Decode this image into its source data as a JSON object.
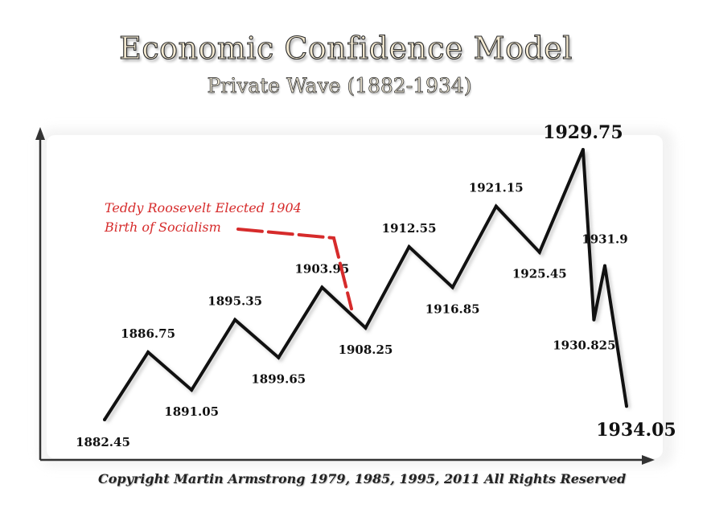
{
  "header": {
    "title": "Economic Confidence Model",
    "subtitle": "Private Wave (1882-1934)"
  },
  "annotation": {
    "lines": [
      "Teddy Roosevelt Elected 1904",
      "Birth of Socialism"
    ],
    "color": "#d62b2b"
  },
  "footer": {
    "copyright": "Copyright Martin Armstrong 1979, 1985, 1995, 2011 All Rights Reserved"
  },
  "chart_data": {
    "type": "line",
    "grid": false,
    "points": [
      {
        "x": 1882.45,
        "label": "1882.45",
        "level": 0.0
      },
      {
        "x": 1886.75,
        "label": "1886.75",
        "level": 0.25
      },
      {
        "x": 1891.05,
        "label": "1891.05",
        "level": 0.11
      },
      {
        "x": 1895.35,
        "label": "1895.35",
        "level": 0.37
      },
      {
        "x": 1899.65,
        "label": "1899.65",
        "level": 0.23
      },
      {
        "x": 1903.95,
        "label": "1903.95",
        "level": 0.49
      },
      {
        "x": 1908.25,
        "label": "1908.25",
        "level": 0.34
      },
      {
        "x": 1912.55,
        "label": "1912.55",
        "level": 0.64
      },
      {
        "x": 1916.85,
        "label": "1916.85",
        "level": 0.49
      },
      {
        "x": 1921.15,
        "label": "1921.15",
        "level": 0.79
      },
      {
        "x": 1925.45,
        "label": "1925.45",
        "level": 0.62
      },
      {
        "x": 1929.75,
        "label": "1929.75",
        "level": 1.0
      },
      {
        "x": 1930.825,
        "label": "1930.825",
        "level": 0.37
      },
      {
        "x": 1931.9,
        "label": "1931.9",
        "level": 0.57
      },
      {
        "x": 1934.05,
        "label": "1934.05",
        "level": 0.05
      }
    ]
  }
}
